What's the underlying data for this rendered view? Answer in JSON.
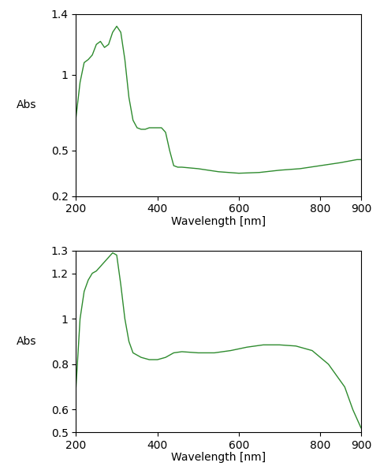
{
  "chart_data": [
    {
      "type": "line",
      "x_label": "Wavelength [nm]",
      "y_label": "Abs",
      "xlim": [
        200,
        900
      ],
      "xticks": [
        200,
        400,
        600,
        800,
        900
      ],
      "ylim": [
        0.2,
        1.4
      ],
      "yticks": [
        0.2,
        0.5,
        1,
        1.4
      ],
      "grid": false,
      "x": [
        200,
        210,
        220,
        230,
        240,
        250,
        260,
        270,
        280,
        290,
        300,
        310,
        320,
        330,
        340,
        350,
        360,
        370,
        380,
        400,
        410,
        420,
        430,
        440,
        450,
        460,
        500,
        550,
        600,
        650,
        700,
        750,
        800,
        850,
        890,
        900
      ],
      "series": [
        {
          "color": "#2e8b2e",
          "values": [
            0.72,
            0.95,
            1.08,
            1.1,
            1.13,
            1.2,
            1.22,
            1.18,
            1.2,
            1.28,
            1.32,
            1.28,
            1.1,
            0.85,
            0.7,
            0.65,
            0.64,
            0.64,
            0.65,
            0.65,
            0.65,
            0.62,
            0.5,
            0.4,
            0.39,
            0.39,
            0.38,
            0.36,
            0.35,
            0.355,
            0.37,
            0.38,
            0.4,
            0.42,
            0.44,
            0.44
          ]
        }
      ]
    },
    {
      "type": "line",
      "x_label": "Wavelength [nm]",
      "y_label": "Abs",
      "xlim": [
        200,
        900
      ],
      "xticks": [
        200,
        400,
        600,
        800,
        900
      ],
      "ylim": [
        0.5,
        1.3
      ],
      "yticks": [
        0.5,
        0.6,
        0.8,
        1,
        1.2,
        1.3
      ],
      "grid": false,
      "x": [
        200,
        210,
        220,
        230,
        240,
        250,
        260,
        270,
        280,
        290,
        300,
        310,
        320,
        330,
        340,
        360,
        380,
        400,
        420,
        440,
        460,
        500,
        540,
        580,
        620,
        660,
        700,
        740,
        780,
        820,
        860,
        880,
        900
      ],
      "series": [
        {
          "color": "#2e8b2e",
          "values": [
            0.7,
            1.0,
            1.12,
            1.17,
            1.2,
            1.21,
            1.23,
            1.25,
            1.27,
            1.29,
            1.28,
            1.15,
            1.0,
            0.9,
            0.85,
            0.83,
            0.82,
            0.82,
            0.83,
            0.85,
            0.855,
            0.85,
            0.85,
            0.86,
            0.875,
            0.885,
            0.885,
            0.88,
            0.86,
            0.8,
            0.7,
            0.6,
            0.52
          ]
        }
      ]
    }
  ]
}
